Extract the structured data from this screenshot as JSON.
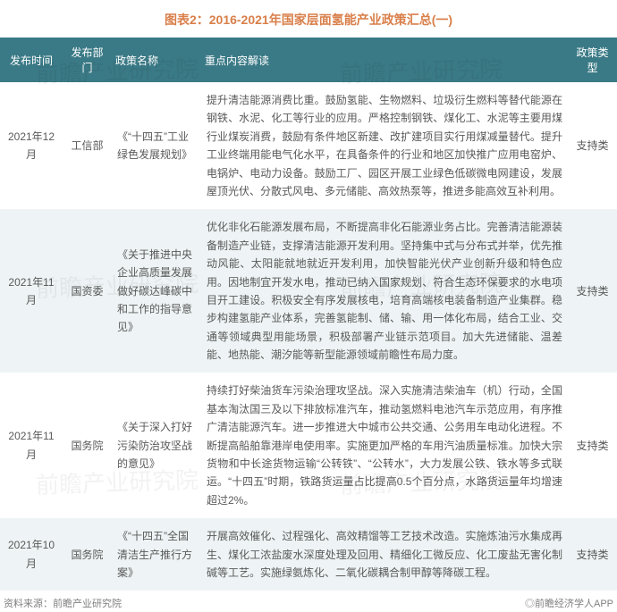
{
  "title": "图表2：2016-2021年国家层面氢能产业政策汇总(一)",
  "title_color": "#d97f4a",
  "header_bg": "#3a7a86",
  "row_bg_even": "#ffffff",
  "row_bg_odd": "#eef4f5",
  "text_color": "#595959",
  "columns": [
    {
      "key": "date",
      "label": "发布时间",
      "class": "col-date"
    },
    {
      "key": "dept",
      "label": "发布部门",
      "class": "col-dept"
    },
    {
      "key": "name",
      "label": "政策名称",
      "class": "col-name"
    },
    {
      "key": "desc",
      "label": "重点内容解读",
      "class": "col-desc"
    },
    {
      "key": "type",
      "label": "政策类型",
      "class": "col-type"
    }
  ],
  "rows": [
    {
      "date": "2021年12月",
      "dept": "工信部",
      "name": "《“十四五”工业绿色发展规划》",
      "desc": "提升清洁能源消费比重。鼓励氢能、生物燃料、垃圾衍生燃料等替代能源在钢铁、水泥、化工等行业的应用。严格控制钢铁、煤化工、水泥等主要用煤行业煤炭消费，鼓励有条件地区新建、改扩建项目实行用煤减量替代。提升工业终端用能电气化水平，在具备条件的行业和地区加快推广应用电窑炉、电锅炉、电动力设备。鼓励工厂、园区开展工业绿色低碳微电网建设，发展屋顶光伏、分散式风电、多元储能、高效热泵等，推进多能高效互补利用。",
      "type": "支持类"
    },
    {
      "date": "2021年11月",
      "dept": "国资委",
      "name": "《关于推进中央企业高质量发展做好碳达峰碳中和工作的指导意见》",
      "desc": "优化非化石能源发展布局，不断提高非化石能源业务占比。完善清洁能源装备制造产业链，支撑清洁能源开发利用。坚持集中式与分布式并举，优先推动风能、太阳能就地就近开发利用，加快智能光伏产业创新升级和特色应用。因地制宜开发水电，推动已纳入国家规划、符合生态环保要求的水电项目开工建设。积极安全有序发展核电，培育高端核电装备制造产业集群。稳步构建氢能产业体系，完善氢能制、储、输、用一体化布局，结合工业、交通等领域典型用能场景，积极部署产业链示范项目。加大先进储能、温差能、地热能、潮汐能等新型能源领域前瞻性布局力度。",
      "type": "支持类"
    },
    {
      "date": "2021年11月",
      "dept": "国务院",
      "name": "《关于深入打好污染防治攻坚战的意见》",
      "desc": "持续打好柴油货车污染治理攻坚战。深入实施清洁柴油车（机）行动，全国基本淘汰国三及以下排放标准汽车，推动氢燃料电池汽车示范应用，有序推广清洁能源汽车。进一步推进大中城市公共交通、公务用车电动化进程。不断提高船舶靠港岸电使用率。实施更加严格的车用汽油质量标准。加快大宗货物和中长途货物运输“公转铁”、“公转水”，大力发展公铁、铁水等多式联运。“十四五”时期，铁路货运量占比提高0.5个百分点，水路货运量年均增速超过2%。",
      "type": "支持类"
    },
    {
      "date": "2021年10月",
      "dept": "国务院",
      "name": "《“十四五”全国清洁生产推行方案》",
      "desc": "开展高效催化、过程强化、高效精馏等工艺技术改造。实施炼油污水集成再生、煤化工浓盐废水深度处理及回用、精细化工微反应、化工废盐无害化制碱等工艺。实施绿氨炼化、二氧化碳耦合制甲醇等降碳工程。",
      "type": "支持类"
    }
  ],
  "footer_left": "资料来源：前瞻产业研究院",
  "footer_right": "◎前瞻经济学人APP",
  "watermark_text": "前瞻产业研究院"
}
